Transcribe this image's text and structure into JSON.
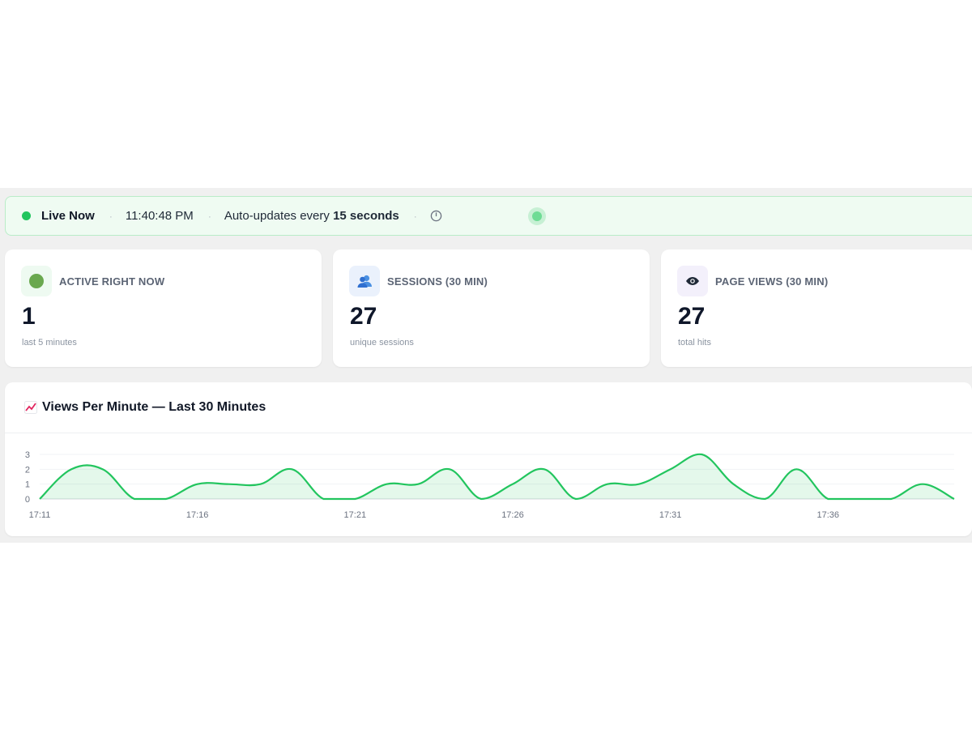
{
  "live_bar": {
    "status_label": "Live Now",
    "time": "11:40:48 PM",
    "auto_update_prefix": "Auto-updates every ",
    "auto_update_interval": "15 seconds",
    "separator": "·",
    "status_color": "#22c55e"
  },
  "cards": [
    {
      "icon": "active-dot-icon",
      "title": "ACTIVE RIGHT NOW",
      "value": "1",
      "sub": "last 5 minutes"
    },
    {
      "icon": "users-icon",
      "title": "SESSIONS (30 MIN)",
      "value": "27",
      "sub": "unique sessions"
    },
    {
      "icon": "eye-icon",
      "title": "PAGE VIEWS (30 MIN)",
      "value": "27",
      "sub": "total hits"
    }
  ],
  "chart": {
    "title": "Views Per Minute — Last 30 Minutes",
    "icon": "trend-chart-icon"
  },
  "chart_data": {
    "type": "area",
    "title": "Views Per Minute — Last 30 Minutes",
    "xlabel": "",
    "ylabel": "",
    "x_tick_labels": [
      "17:11",
      "17:16",
      "17:21",
      "17:26",
      "17:31",
      "17:36"
    ],
    "y_tick_labels": [
      "3",
      "2",
      "1",
      "0"
    ],
    "ylim": [
      0,
      3
    ],
    "grid": "horizontal",
    "series": [
      {
        "color": "#22c55e",
        "x": [
          "17:11",
          "17:12",
          "17:13",
          "17:14",
          "17:15",
          "17:16",
          "17:17",
          "17:18",
          "17:19",
          "17:20",
          "17:21",
          "17:22",
          "17:23",
          "17:24",
          "17:25",
          "17:26",
          "17:27",
          "17:28",
          "17:29",
          "17:30",
          "17:31",
          "17:32",
          "17:33",
          "17:34",
          "17:35",
          "17:36",
          "17:37",
          "17:38",
          "17:39",
          "17:40"
        ],
        "values": [
          0,
          2,
          2,
          0,
          0,
          1,
          1,
          1,
          2,
          0,
          0,
          1,
          1,
          2,
          0,
          1,
          2,
          0,
          1,
          1,
          2,
          3,
          1,
          0,
          2,
          0,
          0,
          0,
          1,
          0
        ]
      }
    ]
  }
}
